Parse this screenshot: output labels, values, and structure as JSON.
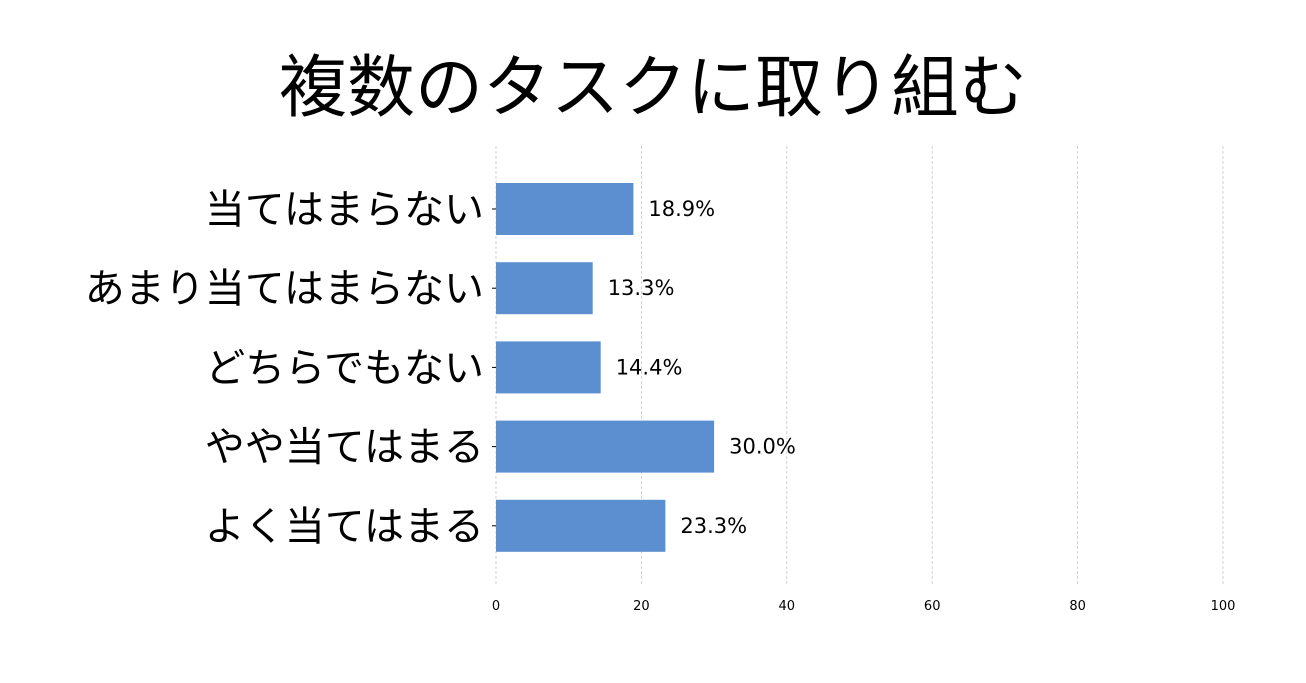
{
  "chart_data": {
    "type": "bar",
    "orientation": "horizontal",
    "title": "複数のタスクに取り組む",
    "categories": [
      "当てはまらない",
      "あまり当てはまらない",
      "どちらでもない",
      "やや当てはまる",
      "よく当てはまる"
    ],
    "values": [
      18.9,
      13.3,
      14.4,
      30.0,
      23.3
    ],
    "value_labels": [
      "18.9%",
      "13.3%",
      "14.4%",
      "30.0%",
      "23.3%"
    ],
    "xlim": [
      0,
      100
    ],
    "xticks": [
      0,
      20,
      40,
      60,
      80,
      100
    ],
    "xlabel": "",
    "ylabel": "",
    "grid": "vertical dashed",
    "bar_color": "#5b8fd0"
  }
}
